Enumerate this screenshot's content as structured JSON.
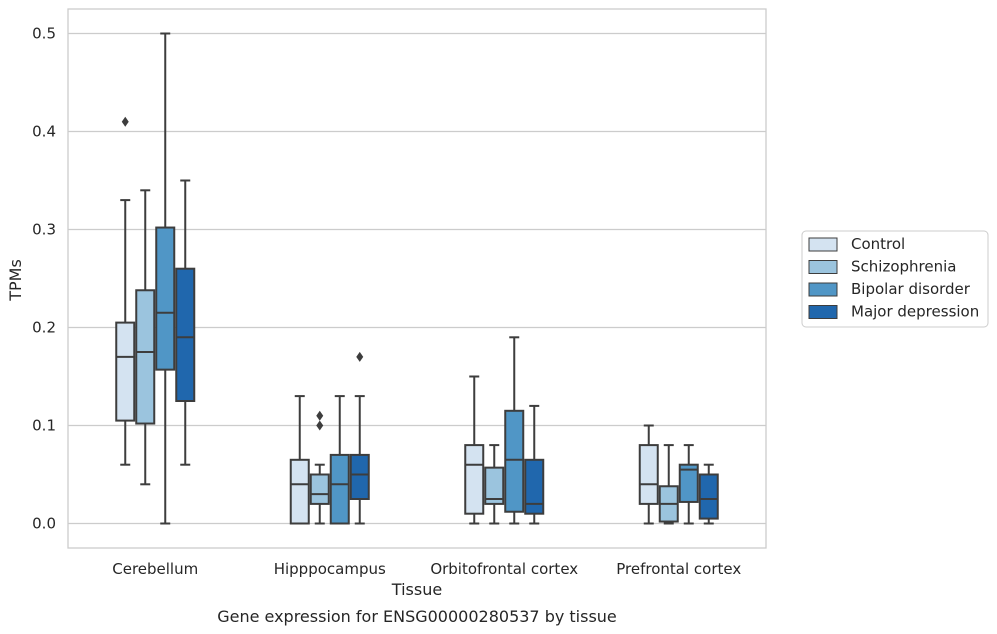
{
  "chart_data": {
    "type": "box",
    "xlabel": "Tissue",
    "ylabel": "TPMs",
    "caption": "Gene expression for ENSG00000280537 by tissue",
    "ylim": [
      -0.025,
      0.525
    ],
    "yticks": [
      0.0,
      0.1,
      0.2,
      0.3,
      0.4,
      0.5
    ],
    "ytick_labels": [
      "0.0",
      "0.1",
      "0.2",
      "0.3",
      "0.4",
      "0.5"
    ],
    "grid": "horizontal",
    "legend_position": "right",
    "categories": [
      "Cerebellum",
      "Hipppocampus",
      "Orbitofrontal cortex",
      "Prefrontal cortex"
    ],
    "series": [
      {
        "name": "Control",
        "color": "#d4e3f1",
        "boxes": [
          {
            "whisker_low": 0.06,
            "q1": 0.105,
            "median": 0.17,
            "q3": 0.205,
            "whisker_high": 0.33,
            "outliers": [
              0.41
            ]
          },
          {
            "whisker_low": 0.0,
            "q1": 0.0,
            "median": 0.04,
            "q3": 0.065,
            "whisker_high": 0.13,
            "outliers": []
          },
          {
            "whisker_low": 0.0,
            "q1": 0.01,
            "median": 0.06,
            "q3": 0.08,
            "whisker_high": 0.15,
            "outliers": []
          },
          {
            "whisker_low": 0.0,
            "q1": 0.02,
            "median": 0.04,
            "q3": 0.08,
            "whisker_high": 0.1,
            "outliers": []
          }
        ]
      },
      {
        "name": "Schizophrenia",
        "color": "#9bc4de",
        "boxes": [
          {
            "whisker_low": 0.04,
            "q1": 0.102,
            "median": 0.175,
            "q3": 0.238,
            "whisker_high": 0.34,
            "outliers": []
          },
          {
            "whisker_low": 0.0,
            "q1": 0.02,
            "median": 0.03,
            "q3": 0.05,
            "whisker_high": 0.06,
            "outliers": [
              0.1,
              0.11
            ]
          },
          {
            "whisker_low": 0.0,
            "q1": 0.02,
            "median": 0.025,
            "q3": 0.057,
            "whisker_high": 0.08,
            "outliers": []
          },
          {
            "whisker_low": 0.0,
            "q1": 0.002,
            "median": 0.02,
            "q3": 0.038,
            "whisker_high": 0.08,
            "outliers": []
          }
        ]
      },
      {
        "name": "Bipolar disorder",
        "color": "#5096c6",
        "boxes": [
          {
            "whisker_low": 0.0,
            "q1": 0.157,
            "median": 0.215,
            "q3": 0.302,
            "whisker_high": 0.5,
            "outliers": []
          },
          {
            "whisker_low": 0.0,
            "q1": 0.0,
            "median": 0.04,
            "q3": 0.07,
            "whisker_high": 0.13,
            "outliers": []
          },
          {
            "whisker_low": 0.0,
            "q1": 0.012,
            "median": 0.065,
            "q3": 0.115,
            "whisker_high": 0.19,
            "outliers": []
          },
          {
            "whisker_low": 0.0,
            "q1": 0.022,
            "median": 0.055,
            "q3": 0.06,
            "whisker_high": 0.08,
            "outliers": []
          }
        ]
      },
      {
        "name": "Major depression",
        "color": "#2067ad",
        "boxes": [
          {
            "whisker_low": 0.06,
            "q1": 0.125,
            "median": 0.19,
            "q3": 0.26,
            "whisker_high": 0.35,
            "outliers": []
          },
          {
            "whisker_low": 0.0,
            "q1": 0.025,
            "median": 0.05,
            "q3": 0.07,
            "whisker_high": 0.13,
            "outliers": [
              0.17
            ]
          },
          {
            "whisker_low": 0.0,
            "q1": 0.01,
            "median": 0.02,
            "q3": 0.065,
            "whisker_high": 0.12,
            "outliers": []
          },
          {
            "whisker_low": 0.0,
            "q1": 0.005,
            "median": 0.025,
            "q3": 0.05,
            "whisker_high": 0.06,
            "outliers": []
          }
        ]
      }
    ]
  }
}
